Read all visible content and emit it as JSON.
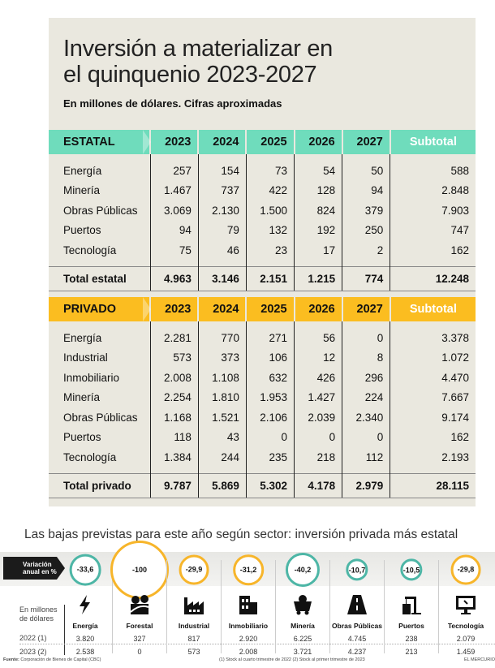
{
  "title_line1": "Inversión a materializar en",
  "title_line2": "el quinquenio 2023-2027",
  "subtitle": "En millones de dólares. Cifras aproximadas",
  "chart_data": [
    {
      "type": "table",
      "title": "ESTATAL",
      "columns": [
        "2023",
        "2024",
        "2025",
        "2026",
        "2027",
        "Subtotal"
      ],
      "rows": [
        [
          "Energía",
          "257",
          "154",
          "73",
          "54",
          "50",
          "588"
        ],
        [
          "Minería",
          "1.467",
          "737",
          "422",
          "128",
          "94",
          "2.848"
        ],
        [
          "Obras Públicas",
          "3.069",
          "2.130",
          "1.500",
          "824",
          "379",
          "7.903"
        ],
        [
          "Puertos",
          "94",
          "79",
          "132",
          "192",
          "250",
          "747"
        ],
        [
          "Tecnología",
          "75",
          "46",
          "23",
          "17",
          "2",
          "162"
        ]
      ],
      "total": [
        "Total estatal",
        "4.963",
        "3.146",
        "2.151",
        "1.215",
        "774",
        "12.248"
      ],
      "color": "#6fdcbc"
    },
    {
      "type": "table",
      "title": "PRIVADO",
      "columns": [
        "2023",
        "2024",
        "2025",
        "2026",
        "2027",
        "Subtotal"
      ],
      "rows": [
        [
          "Energía",
          "2.281",
          "770",
          "271",
          "56",
          "0",
          "3.378"
        ],
        [
          "Industrial",
          "573",
          "373",
          "106",
          "12",
          "8",
          "1.072"
        ],
        [
          "Inmobiliario",
          "2.008",
          "1.108",
          "632",
          "426",
          "296",
          "4.470"
        ],
        [
          "Minería",
          "2.254",
          "1.810",
          "1.953",
          "1.427",
          "224",
          "7.667"
        ],
        [
          "Obras Públicas",
          "1.168",
          "1.521",
          "2.106",
          "2.039",
          "2.340",
          "9.174"
        ],
        [
          "Puertos",
          "118",
          "43",
          "0",
          "0",
          "0",
          "162"
        ],
        [
          "Tecnología",
          "1.384",
          "244",
          "235",
          "218",
          "112",
          "2.193"
        ]
      ],
      "total": [
        "Total privado",
        "9.787",
        "5.869",
        "5.302",
        "4.178",
        "2.979",
        "28.115"
      ],
      "color": "#fbbd20"
    },
    {
      "type": "bar",
      "title": "Las bajas previstas para este año según sector: inversión privada más estatal",
      "variation_label": "Variación anual en %",
      "units_label": "En millones de dólares",
      "row1_label": "2022 (1)",
      "row2_label": "2023 (2)",
      "sectors": [
        {
          "name": "Energía",
          "variation": "-33,6",
          "v2022": "3.820",
          "v2023": "2.538",
          "ring": "#4db6a6",
          "icon": "lightning-icon"
        },
        {
          "name": "Forestal",
          "variation": "-100",
          "v2022": "327",
          "v2023": "0",
          "ring": "#f7b52a",
          "icon": "forest-icon"
        },
        {
          "name": "Industrial",
          "variation": "-29,9",
          "v2022": "817",
          "v2023": "573",
          "ring": "#f7b52a",
          "icon": "factory-icon"
        },
        {
          "name": "Inmobiliario",
          "variation": "-31,2",
          "v2022": "2.920",
          "v2023": "2.008",
          "ring": "#f7b52a",
          "icon": "building-icon"
        },
        {
          "name": "Minería",
          "variation": "-40,2",
          "v2022": "6.225",
          "v2023": "3.721",
          "ring": "#4db6a6",
          "icon": "mine-cart-icon"
        },
        {
          "name": "Obras Públicas",
          "variation": "-10,7",
          "v2022": "4.745",
          "v2023": "4.237",
          "ring": "#4db6a6",
          "icon": "road-icon"
        },
        {
          "name": "Puertos",
          "variation": "-10,5",
          "v2022": "238",
          "v2023": "213",
          "ring": "#4db6a6",
          "icon": "crane-icon"
        },
        {
          "name": "Tecnología",
          "variation": "-29,8",
          "v2022": "2.079",
          "v2023": "1.459",
          "ring": "#f7b52a",
          "icon": "monitor-icon"
        }
      ]
    }
  ],
  "footer": {
    "source_label": "Fuente:",
    "source": "Corporación de Bienes de Capital (CBC)",
    "notes": "(1) Stock al cuarto trimestre de 2022   (2) Stock al primer trimestre de 2023",
    "brand": "EL MERCURIO"
  }
}
